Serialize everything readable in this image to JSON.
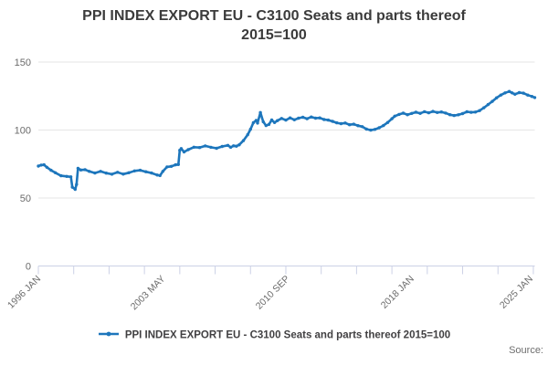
{
  "title": {
    "line1": "PPI INDEX EXPORT EU - C3100 Seats and parts thereof",
    "line2": "2015=100"
  },
  "legend": {
    "label": "PPI INDEX EXPORT EU - C3100 Seats and parts thereof 2015=100"
  },
  "source": {
    "label": "Source:"
  },
  "colors": {
    "series": "#1d76bc",
    "grid": "#e6e6e6",
    "axis": "#ccd1e6",
    "axis_text": "#6b6b6b",
    "title_text": "#3b3b3b"
  },
  "chart_data": {
    "type": "line",
    "title": "PPI INDEX EXPORT EU - C3100 Seats and parts thereof",
    "subtitle": "2015=100",
    "legend_position": "bottom",
    "grid": "horizontal-only",
    "x_axis": {
      "start": "1996 JAN",
      "end": "2025 APR",
      "tick_labels": [
        "1996 JAN",
        "2003 MAY",
        "2010 SEP",
        "2018 JAN",
        "2025 JAN"
      ],
      "label_months": [
        0,
        88,
        176,
        264,
        348
      ],
      "minor_tick_count": 15,
      "tick_interval_months": 25,
      "total_months": 351
    },
    "y_axis": {
      "ticks": [
        0,
        50,
        100,
        150
      ],
      "range": [
        0,
        150
      ],
      "label": ""
    },
    "series": [
      {
        "name": "PPI INDEX EXPORT EU - C3100 Seats and parts thereof 2015=100",
        "points": [
          [
            0,
            73.5
          ],
          [
            2,
            74.2
          ],
          [
            4,
            74.4
          ],
          [
            6,
            72.6
          ],
          [
            9,
            70.4
          ],
          [
            12,
            68.6
          ],
          [
            16,
            66.4
          ],
          [
            20,
            65.9
          ],
          [
            23,
            65.6
          ],
          [
            24,
            58
          ],
          [
            26,
            56.4
          ],
          [
            27,
            60
          ],
          [
            28,
            71.8
          ],
          [
            30,
            70.6
          ],
          [
            33,
            70.9
          ],
          [
            36,
            69.6
          ],
          [
            40,
            68.4
          ],
          [
            44,
            69.6
          ],
          [
            48,
            68.3
          ],
          [
            52,
            67.5
          ],
          [
            56,
            68.9
          ],
          [
            60,
            67.6
          ],
          [
            64,
            68.6
          ],
          [
            68,
            69.9
          ],
          [
            72,
            70.4
          ],
          [
            76,
            69.3
          ],
          [
            80,
            68.4
          ],
          [
            84,
            66.9
          ],
          [
            86,
            66.5
          ],
          [
            88,
            69.6
          ],
          [
            91,
            72.9
          ],
          [
            94,
            73.3
          ],
          [
            97,
            74.4
          ],
          [
            99,
            74.6
          ],
          [
            100,
            85.1
          ],
          [
            101,
            86.4
          ],
          [
            103,
            83.9
          ],
          [
            106,
            85.6
          ],
          [
            110,
            87.4
          ],
          [
            114,
            87.1
          ],
          [
            118,
            88.3
          ],
          [
            122,
            87.3
          ],
          [
            126,
            86.6
          ],
          [
            130,
            87.9
          ],
          [
            134,
            88.7
          ],
          [
            136,
            87.3
          ],
          [
            138,
            88.4
          ],
          [
            140,
            88.1
          ],
          [
            142,
            89.1
          ],
          [
            145,
            92.2
          ],
          [
            148,
            96.6
          ],
          [
            150,
            100.6
          ],
          [
            152,
            105.4
          ],
          [
            154,
            107.1
          ],
          [
            155,
            105.1
          ],
          [
            157,
            112.9
          ],
          [
            159,
            106.1
          ],
          [
            161,
            103.3
          ],
          [
            163,
            104.1
          ],
          [
            165,
            107.4
          ],
          [
            167,
            105.5
          ],
          [
            169,
            106.9
          ],
          [
            172,
            108.5
          ],
          [
            175,
            107.3
          ],
          [
            178,
            108.9
          ],
          [
            181,
            107.5
          ],
          [
            184,
            108.7
          ],
          [
            187,
            109.4
          ],
          [
            190,
            108.3
          ],
          [
            193,
            109.6
          ],
          [
            196,
            108.7
          ],
          [
            199,
            108.9
          ],
          [
            202,
            107.7
          ],
          [
            205,
            107.3
          ],
          [
            208,
            106.4
          ],
          [
            211,
            105.3
          ],
          [
            214,
            104.7
          ],
          [
            217,
            105.2
          ],
          [
            220,
            103.9
          ],
          [
            223,
            104.3
          ],
          [
            226,
            103.2
          ],
          [
            229,
            102.5
          ],
          [
            232,
            100.7
          ],
          [
            235,
            99.9
          ],
          [
            238,
            100.5
          ],
          [
            241,
            101.7
          ],
          [
            244,
            103.3
          ],
          [
            247,
            105.6
          ],
          [
            250,
            108.3
          ],
          [
            252,
            110.2
          ],
          [
            255,
            111.5
          ],
          [
            258,
            112.4
          ],
          [
            261,
            111.3
          ],
          [
            264,
            112.2
          ],
          [
            267,
            113.1
          ],
          [
            270,
            112.3
          ],
          [
            273,
            113.5
          ],
          [
            276,
            112.7
          ],
          [
            279,
            113.7
          ],
          [
            282,
            112.9
          ],
          [
            285,
            113.3
          ],
          [
            288,
            112.5
          ],
          [
            291,
            111.3
          ],
          [
            294,
            110.7
          ],
          [
            297,
            111.2
          ],
          [
            300,
            112.1
          ],
          [
            303,
            113.4
          ],
          [
            306,
            113
          ],
          [
            309,
            113.2
          ],
          [
            312,
            114.3
          ],
          [
            315,
            116.4
          ],
          [
            318,
            118.7
          ],
          [
            321,
            121.1
          ],
          [
            324,
            123.7
          ],
          [
            327,
            125.7
          ],
          [
            330,
            127.3
          ],
          [
            333,
            128.4
          ],
          [
            335,
            127.3
          ],
          [
            337,
            126.3
          ],
          [
            340,
            127.5
          ],
          [
            343,
            127.1
          ],
          [
            346,
            125.7
          ],
          [
            349,
            124.7
          ],
          [
            351,
            123.9
          ]
        ]
      }
    ]
  }
}
